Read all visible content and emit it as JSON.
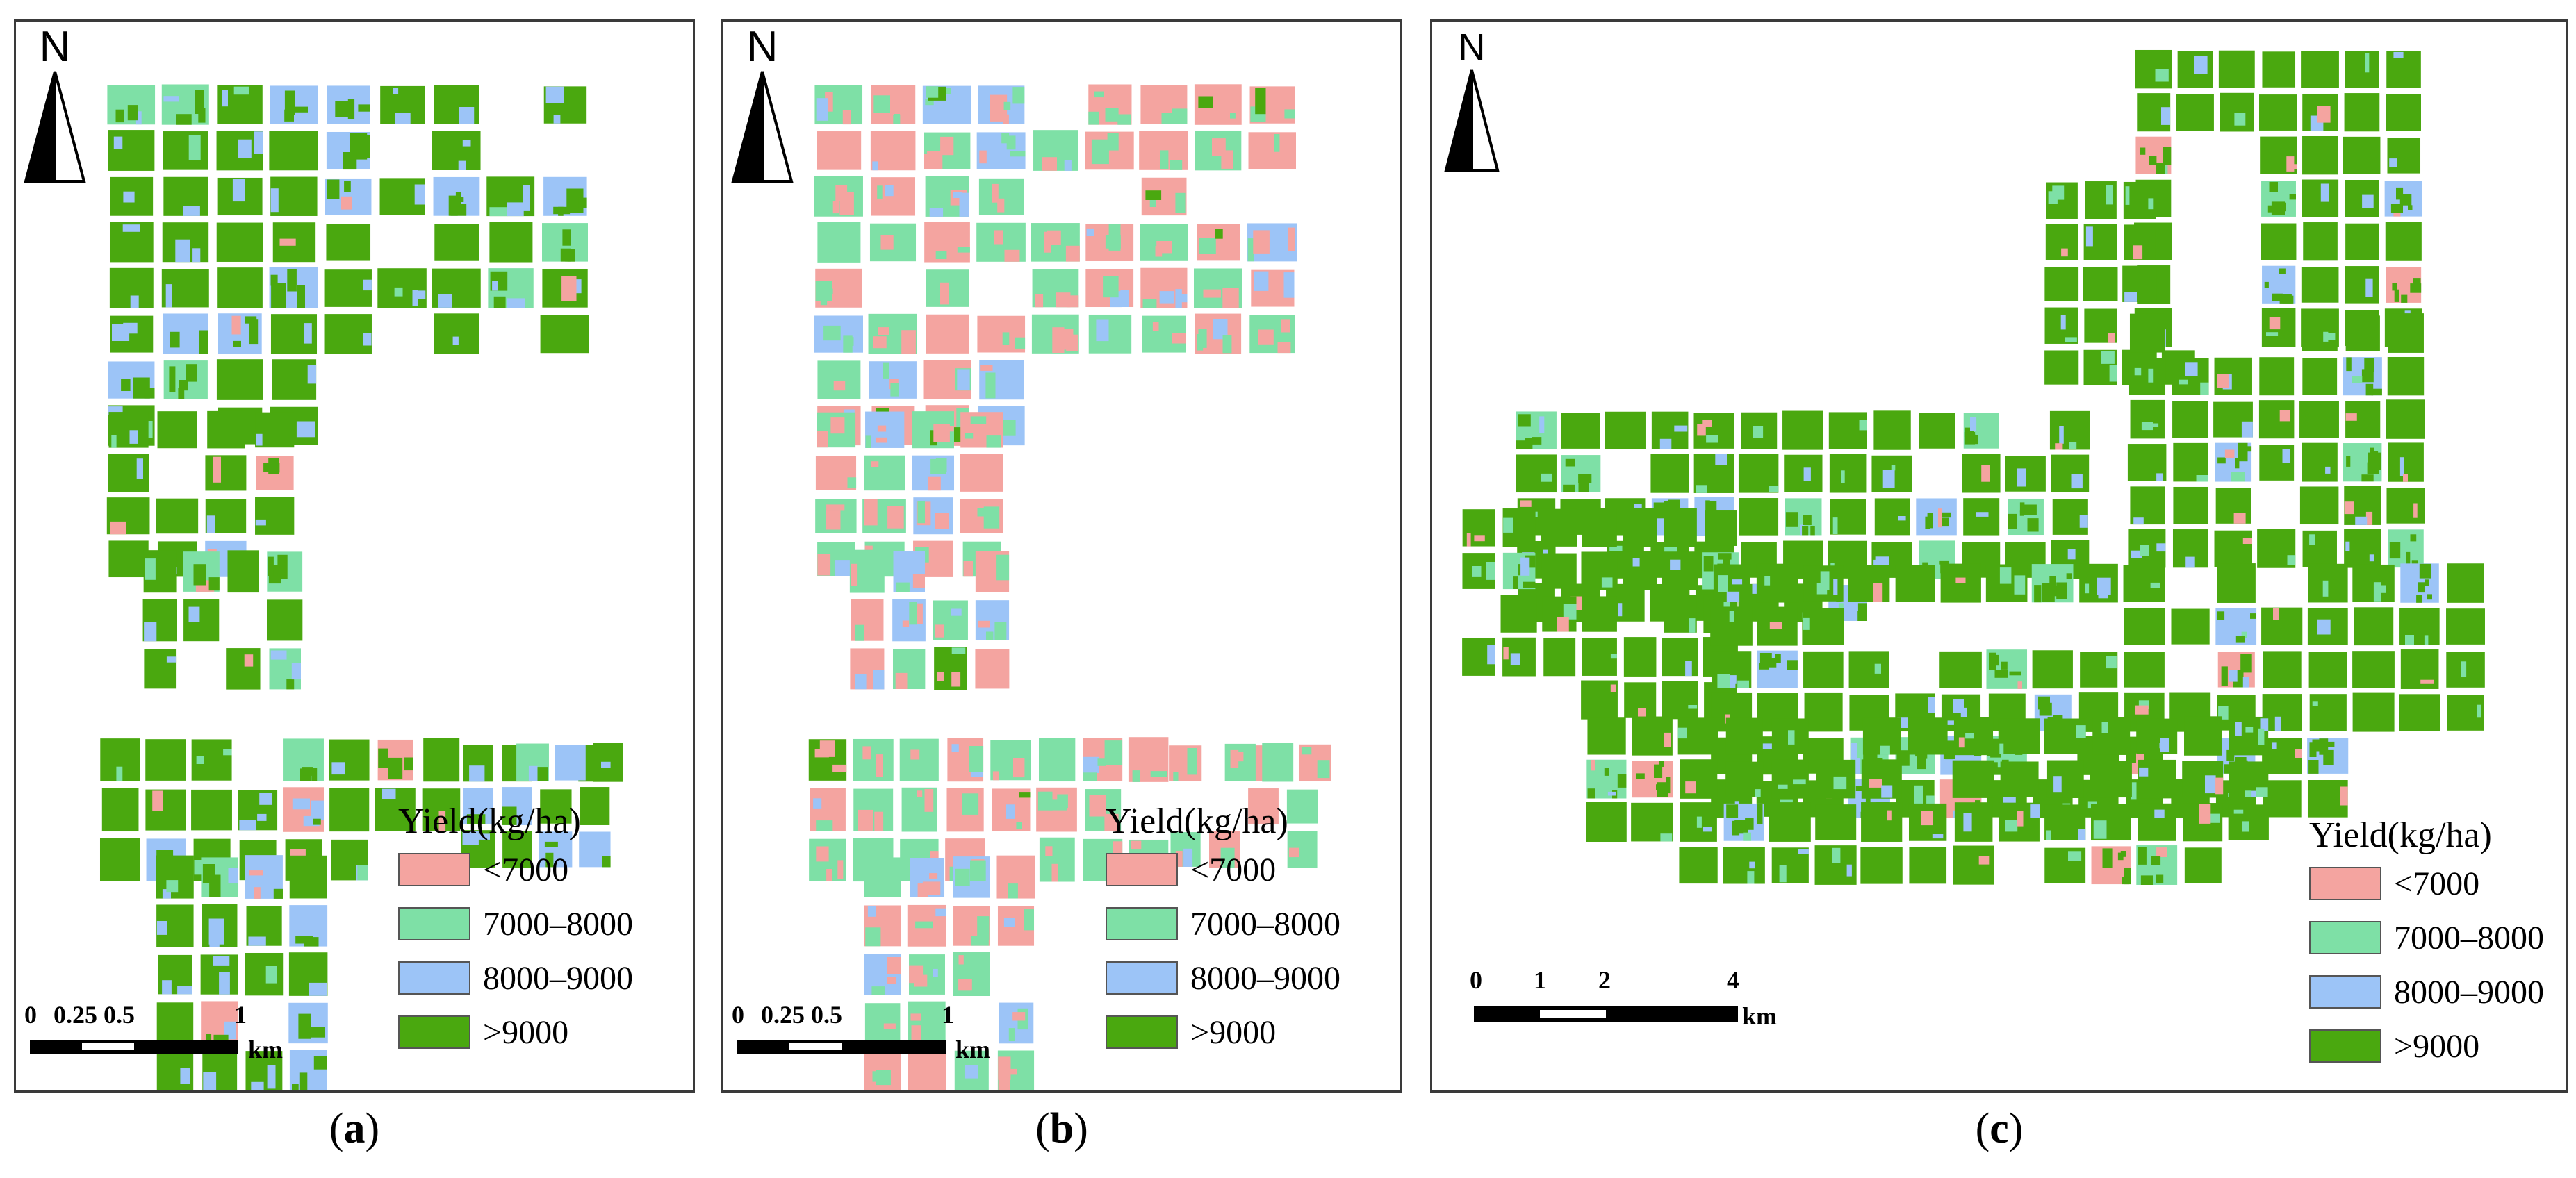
{
  "legend": {
    "title": "Yield(kg/ha)",
    "classes": [
      {
        "label": "<7000",
        "color": "#f4a4a0"
      },
      {
        "label": "7000–8000",
        "color": "#7ee0a6"
      },
      {
        "label": "8000–9000",
        "color": "#9cc4f7"
      },
      {
        "label": ">9000",
        "color": "#4aa80f"
      }
    ]
  },
  "north_label": "N",
  "panels": [
    {
      "id": "a",
      "open": "(",
      "letter": "a",
      "close": ")",
      "scale": {
        "ticks": [
          "0",
          "0.25",
          "0.5",
          "1"
        ],
        "unit": "km"
      },
      "dominant_class": ">9000"
    },
    {
      "id": "b",
      "open": "(",
      "letter": "b",
      "close": ")",
      "scale": {
        "ticks": [
          "0",
          "0.25",
          "0.5",
          "1"
        ],
        "unit": "km"
      },
      "dominant_class": "<7000 / 7000–8000"
    },
    {
      "id": "c",
      "open": "(",
      "letter": "c",
      "close": ")",
      "scale": {
        "ticks": [
          "0",
          "1",
          "2",
          "4"
        ],
        "unit": "km"
      },
      "dominant_class": ">9000"
    }
  ]
}
